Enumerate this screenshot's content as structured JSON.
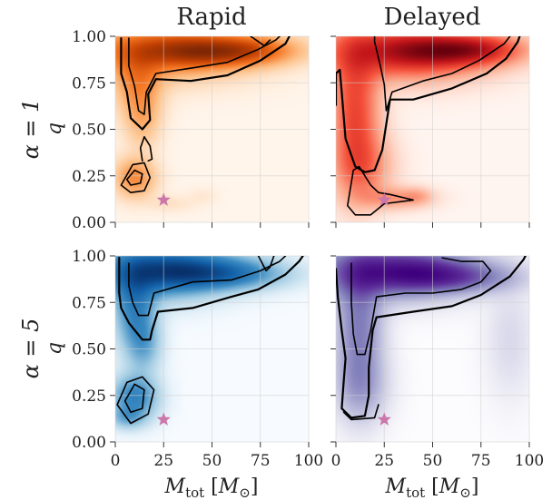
{
  "chart_data": [
    {
      "type": "heatmap",
      "panel": "top-left",
      "title": "Rapid",
      "row_label": "α = 1",
      "ylabel": "q",
      "xlabel": "",
      "xlim": [
        0,
        100
      ],
      "ylim": [
        0,
        1
      ],
      "xticks": [
        "",
        "",
        "",
        "",
        ""
      ],
      "yticks": [
        "0.00",
        "0.25",
        "0.50",
        "0.75",
        "1.00"
      ],
      "colormap": [
        "#fff5eb",
        "#fdbf86",
        "#f57622",
        "#c44103",
        "#7f2704"
      ],
      "grid": true,
      "peaks": [
        {
          "x": 25,
          "y": 0.92,
          "w": 30,
          "h": 0.1,
          "a": 1.0
        },
        {
          "x": 40,
          "y": 0.93,
          "w": 24,
          "h": 0.06,
          "a": 0.9
        },
        {
          "x": 55,
          "y": 0.91,
          "w": 22,
          "h": 0.05,
          "a": 0.75
        },
        {
          "x": 72,
          "y": 0.93,
          "w": 16,
          "h": 0.05,
          "a": 0.55
        },
        {
          "x": 12,
          "y": 0.75,
          "w": 8,
          "h": 0.12,
          "a": 0.8
        },
        {
          "x": 14,
          "y": 0.55,
          "w": 6,
          "h": 0.1,
          "a": 0.45
        },
        {
          "x": 10,
          "y": 0.24,
          "w": 7,
          "h": 0.07,
          "a": 0.85
        },
        {
          "x": 28,
          "y": 0.1,
          "w": 8,
          "h": 0.03,
          "a": 0.12
        },
        {
          "x": 45,
          "y": 0.14,
          "w": 5,
          "h": 0.03,
          "a": 0.07
        }
      ],
      "contours": [
        [
          [
            3,
            0.99
          ],
          [
            3,
            0.8
          ],
          [
            6,
            0.7
          ],
          [
            8,
            0.56
          ],
          [
            14,
            0.5
          ],
          [
            18,
            0.55
          ],
          [
            17,
            0.69
          ],
          [
            21,
            0.77
          ],
          [
            39,
            0.76
          ],
          [
            58,
            0.79
          ],
          [
            75,
            0.87
          ],
          [
            88,
            0.96
          ],
          [
            90,
            1.0
          ]
        ],
        [
          [
            7,
            0.99
          ],
          [
            7,
            0.84
          ],
          [
            10,
            0.73
          ],
          [
            12,
            0.6
          ],
          [
            15,
            0.58
          ],
          [
            16,
            0.7
          ],
          [
            21,
            0.8
          ],
          [
            40,
            0.83
          ],
          [
            58,
            0.86
          ],
          [
            74,
            0.93
          ],
          [
            83,
            0.98
          ],
          [
            85,
            1.0
          ]
        ],
        [
          [
            70,
            1.0
          ],
          [
            77,
            0.95
          ],
          [
            80,
            0.98
          ]
        ],
        [
          [
            3,
            0.2
          ],
          [
            9,
            0.31
          ],
          [
            15,
            0.32
          ],
          [
            18,
            0.24
          ],
          [
            15,
            0.17
          ],
          [
            8,
            0.16
          ],
          [
            3,
            0.2
          ]
        ],
        [
          [
            6,
            0.23
          ],
          [
            10,
            0.28
          ],
          [
            14,
            0.26
          ],
          [
            13,
            0.21
          ],
          [
            8,
            0.2
          ],
          [
            6,
            0.23
          ]
        ],
        [
          [
            14,
            0.33
          ],
          [
            13,
            0.4
          ],
          [
            15,
            0.46
          ],
          [
            18,
            0.41
          ],
          [
            19,
            0.34
          ],
          [
            17,
            0.33
          ]
        ]
      ],
      "marker": {
        "x": 25,
        "y": 0.12,
        "symbol": "star",
        "color": "#cc77aa"
      }
    },
    {
      "type": "heatmap",
      "panel": "top-right",
      "title": "Delayed",
      "row_label": "",
      "ylabel": "",
      "xlabel": "",
      "xlim": [
        0,
        100
      ],
      "ylim": [
        0,
        1
      ],
      "xticks": [
        "",
        "",
        "",
        "",
        ""
      ],
      "yticks": [
        "",
        "",
        "",
        "",
        ""
      ],
      "colormap": [
        "#fff5f0",
        "#fcaa8e",
        "#f44f39",
        "#c3161b",
        "#67000d"
      ],
      "grid": true,
      "peaks": [
        {
          "x": 35,
          "y": 0.92,
          "w": 28,
          "h": 0.1,
          "a": 1.0
        },
        {
          "x": 55,
          "y": 0.92,
          "w": 22,
          "h": 0.06,
          "a": 0.75
        },
        {
          "x": 75,
          "y": 0.93,
          "w": 15,
          "h": 0.05,
          "a": 0.55
        },
        {
          "x": 10,
          "y": 0.6,
          "w": 8,
          "h": 0.25,
          "a": 0.8
        },
        {
          "x": 14,
          "y": 0.3,
          "w": 10,
          "h": 0.12,
          "a": 0.45
        },
        {
          "x": 30,
          "y": 0.13,
          "w": 12,
          "h": 0.04,
          "a": 0.35
        },
        {
          "x": 42,
          "y": 0.14,
          "w": 5,
          "h": 0.03,
          "a": 0.2
        }
      ],
      "contours": [
        [
          [
            0,
            0.63
          ],
          [
            0,
            0.8
          ],
          [
            2,
            0.82
          ],
          [
            3,
            0.7
          ],
          [
            5,
            0.45
          ],
          [
            10,
            0.3
          ],
          [
            15,
            0.27
          ],
          [
            20,
            0.28
          ],
          [
            24,
            0.39
          ],
          [
            28,
            0.66
          ],
          [
            40,
            0.66
          ],
          [
            60,
            0.72
          ],
          [
            78,
            0.8
          ],
          [
            88,
            0.88
          ],
          [
            94,
            0.97
          ],
          [
            95,
            1.0
          ]
        ],
        [
          [
            20,
            1.0
          ],
          [
            20,
            0.97
          ],
          [
            23,
            0.84
          ],
          [
            25,
            0.74
          ],
          [
            26,
            0.6
          ],
          [
            29,
            0.7
          ],
          [
            45,
            0.76
          ],
          [
            60,
            0.8
          ],
          [
            74,
            0.87
          ],
          [
            87,
            0.96
          ],
          [
            90,
            1.0
          ]
        ],
        [
          [
            6,
            0.09
          ],
          [
            10,
            0.04
          ],
          [
            18,
            0.04
          ],
          [
            25,
            0.1
          ],
          [
            40,
            0.12
          ],
          [
            28,
            0.15
          ],
          [
            22,
            0.16
          ],
          [
            18,
            0.2
          ],
          [
            15,
            0.25
          ],
          [
            12,
            0.3
          ],
          [
            9,
            0.28
          ],
          [
            6,
            0.09
          ]
        ]
      ],
      "marker": {
        "x": 25,
        "y": 0.12,
        "symbol": "star",
        "color": "#cc77aa"
      }
    },
    {
      "type": "heatmap",
      "panel": "bottom-left",
      "title": "",
      "row_label": "α = 5",
      "ylabel": "q",
      "xlabel": "M_tot [M_⊙]",
      "xlim": [
        0,
        100
      ],
      "ylim": [
        0,
        1
      ],
      "xticks": [
        "0",
        "25",
        "50",
        "75",
        "100"
      ],
      "yticks": [
        "0.00",
        "0.25",
        "0.50",
        "0.75",
        "1.00"
      ],
      "colormap": [
        "#f7fbff",
        "#a6cee4",
        "#3b8bc2",
        "#1361a9",
        "#08306b"
      ],
      "grid": true,
      "peaks": [
        {
          "x": 20,
          "y": 0.92,
          "w": 22,
          "h": 0.1,
          "a": 1.0
        },
        {
          "x": 40,
          "y": 0.92,
          "w": 24,
          "h": 0.07,
          "a": 0.8
        },
        {
          "x": 60,
          "y": 0.9,
          "w": 20,
          "h": 0.05,
          "a": 0.55
        },
        {
          "x": 10,
          "y": 0.72,
          "w": 7,
          "h": 0.15,
          "a": 0.8
        },
        {
          "x": 15,
          "y": 0.52,
          "w": 6,
          "h": 0.1,
          "a": 0.45
        },
        {
          "x": 10,
          "y": 0.24,
          "w": 8,
          "h": 0.08,
          "a": 0.85
        },
        {
          "x": 6,
          "y": 0.13,
          "w": 6,
          "h": 0.04,
          "a": 0.4
        }
      ],
      "contours": [
        [
          [
            2,
            0.99
          ],
          [
            2,
            0.8
          ],
          [
            3,
            0.72
          ],
          [
            7,
            0.64
          ],
          [
            14,
            0.55
          ],
          [
            18,
            0.55
          ],
          [
            19,
            0.6
          ],
          [
            22,
            0.7
          ],
          [
            40,
            0.72
          ],
          [
            60,
            0.78
          ],
          [
            74,
            0.82
          ],
          [
            88,
            0.9
          ],
          [
            95,
            0.97
          ],
          [
            97,
            1.0
          ]
        ],
        [
          [
            7,
            0.96
          ],
          [
            7,
            0.84
          ],
          [
            9,
            0.75
          ],
          [
            12,
            0.68
          ],
          [
            17,
            0.68
          ],
          [
            20,
            0.8
          ],
          [
            40,
            0.86
          ],
          [
            60,
            0.87
          ],
          [
            75,
            0.92
          ],
          [
            85,
            0.97
          ],
          [
            88,
            1.0
          ]
        ],
        [
          [
            74,
            1.0
          ],
          [
            78,
            0.92
          ],
          [
            80,
            0.94
          ],
          [
            82,
            1.0
          ]
        ],
        [
          [
            1,
            0.2
          ],
          [
            6,
            0.32
          ],
          [
            14,
            0.35
          ],
          [
            20,
            0.28
          ],
          [
            17,
            0.15
          ],
          [
            8,
            0.1
          ],
          [
            1,
            0.2
          ]
        ],
        [
          [
            5,
            0.22
          ],
          [
            10,
            0.31
          ],
          [
            15,
            0.28
          ],
          [
            14,
            0.18
          ],
          [
            8,
            0.16
          ],
          [
            5,
            0.22
          ]
        ]
      ],
      "marker": {
        "x": 25,
        "y": 0.12,
        "symbol": "star",
        "color": "#cc77aa"
      }
    },
    {
      "type": "heatmap",
      "panel": "bottom-right",
      "title": "",
      "row_label": "",
      "ylabel": "",
      "xlabel": "M_tot [M_⊙]",
      "xlim": [
        0,
        100
      ],
      "ylim": [
        0,
        1
      ],
      "xticks": [
        "0",
        "25",
        "50",
        "75",
        "100"
      ],
      "yticks": [
        "",
        "",
        "",
        "",
        ""
      ],
      "colormap": [
        "#fcfbfd",
        "#bcbddc",
        "#807dba",
        "#5d2f9a",
        "#3f007d"
      ],
      "grid": true,
      "peaks": [
        {
          "x": 25,
          "y": 0.92,
          "w": 26,
          "h": 0.1,
          "a": 1.0
        },
        {
          "x": 45,
          "y": 0.91,
          "w": 24,
          "h": 0.07,
          "a": 0.8
        },
        {
          "x": 65,
          "y": 0.88,
          "w": 20,
          "h": 0.05,
          "a": 0.5
        },
        {
          "x": 12,
          "y": 0.62,
          "w": 8,
          "h": 0.25,
          "a": 0.75
        },
        {
          "x": 13,
          "y": 0.3,
          "w": 9,
          "h": 0.12,
          "a": 0.35
        },
        {
          "x": 90,
          "y": 0.55,
          "w": 8,
          "h": 0.2,
          "a": 0.15
        }
      ],
      "contours": [
        [
          [
            0,
            0.93
          ],
          [
            1,
            0.78
          ],
          [
            3,
            0.6
          ],
          [
            5,
            0.45
          ],
          [
            4,
            0.32
          ],
          [
            3,
            0.18
          ],
          [
            8,
            0.13
          ],
          [
            15,
            0.14
          ],
          [
            17,
            0.25
          ],
          [
            17,
            0.4
          ],
          [
            19,
            0.6
          ],
          [
            21,
            0.67
          ],
          [
            40,
            0.7
          ],
          [
            60,
            0.73
          ],
          [
            75,
            0.79
          ],
          [
            90,
            0.89
          ],
          [
            97,
            0.98
          ],
          [
            98,
            1.0
          ]
        ],
        [
          [
            4,
            0.16
          ],
          [
            8,
            0.12
          ],
          [
            20,
            0.13
          ],
          [
            22,
            0.2
          ]
        ],
        [
          [
            8,
            0.96
          ],
          [
            8,
            0.75
          ],
          [
            9,
            0.58
          ],
          [
            11,
            0.47
          ],
          [
            15,
            0.47
          ],
          [
            18,
            0.6
          ],
          [
            21,
            0.78
          ],
          [
            36,
            0.8
          ],
          [
            50,
            0.8
          ],
          [
            65,
            0.82
          ],
          [
            75,
            0.86
          ],
          [
            80,
            0.92
          ],
          [
            76,
            0.97
          ],
          [
            65,
            0.97
          ],
          [
            55,
            0.99
          ]
        ]
      ],
      "marker": {
        "x": 25,
        "y": 0.12,
        "symbol": "star",
        "color": "#cc77aa"
      }
    }
  ]
}
